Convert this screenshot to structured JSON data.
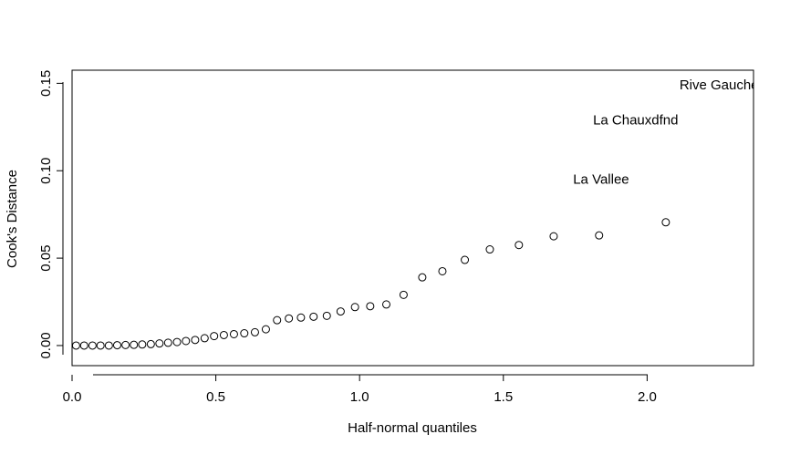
{
  "chart_data": {
    "type": "scatter",
    "title": "",
    "xlabel": "Half-normal quantiles",
    "ylabel": "Cook's Distance",
    "xlim": [
      0.0,
      2.37
    ],
    "ylim": [
      -0.0115,
      0.1575
    ],
    "x_ticks": [
      0.0,
      0.5,
      1.0,
      1.5,
      2.0
    ],
    "x_tick_labels": [
      "0.0",
      "0.5",
      "1.0",
      "1.5",
      "2.0"
    ],
    "y_ticks": [
      0.0,
      0.05,
      0.1,
      0.15
    ],
    "y_tick_labels": [
      "0.00",
      "0.05",
      "0.10",
      "0.15"
    ],
    "grid": false,
    "points": [
      {
        "x": 0.014,
        "y": 0.0
      },
      {
        "x": 0.042,
        "y": 0.0
      },
      {
        "x": 0.071,
        "y": 0.0
      },
      {
        "x": 0.099,
        "y": 0.0
      },
      {
        "x": 0.128,
        "y": 0.0
      },
      {
        "x": 0.157,
        "y": 0.0002
      },
      {
        "x": 0.186,
        "y": 0.0003
      },
      {
        "x": 0.215,
        "y": 0.0004
      },
      {
        "x": 0.244,
        "y": 0.0006
      },
      {
        "x": 0.274,
        "y": 0.0008
      },
      {
        "x": 0.304,
        "y": 0.0012
      },
      {
        "x": 0.334,
        "y": 0.0016
      },
      {
        "x": 0.365,
        "y": 0.002
      },
      {
        "x": 0.396,
        "y": 0.0026
      },
      {
        "x": 0.428,
        "y": 0.0032
      },
      {
        "x": 0.461,
        "y": 0.0042
      },
      {
        "x": 0.494,
        "y": 0.0054
      },
      {
        "x": 0.528,
        "y": 0.006
      },
      {
        "x": 0.563,
        "y": 0.0065
      },
      {
        "x": 0.599,
        "y": 0.007
      },
      {
        "x": 0.636,
        "y": 0.0076
      },
      {
        "x": 0.674,
        "y": 0.0093
      },
      {
        "x": 0.713,
        "y": 0.0145
      },
      {
        "x": 0.754,
        "y": 0.0155
      },
      {
        "x": 0.796,
        "y": 0.016
      },
      {
        "x": 0.84,
        "y": 0.0165
      },
      {
        "x": 0.886,
        "y": 0.017
      },
      {
        "x": 0.934,
        "y": 0.0195
      },
      {
        "x": 0.984,
        "y": 0.022
      },
      {
        "x": 1.037,
        "y": 0.0225
      },
      {
        "x": 1.093,
        "y": 0.0235
      },
      {
        "x": 1.153,
        "y": 0.029
      },
      {
        "x": 1.218,
        "y": 0.039
      },
      {
        "x": 1.288,
        "y": 0.0425
      },
      {
        "x": 1.366,
        "y": 0.049
      },
      {
        "x": 1.453,
        "y": 0.055
      },
      {
        "x": 1.554,
        "y": 0.0575
      },
      {
        "x": 1.675,
        "y": 0.0625
      },
      {
        "x": 1.833,
        "y": 0.063
      },
      {
        "x": 2.065,
        "y": 0.0705
      }
    ],
    "labels": [
      {
        "text": "La Vallee",
        "x": 1.84,
        "y": 0.0945
      },
      {
        "text": "La Chauxdfnd",
        "x": 1.96,
        "y": 0.1285
      },
      {
        "text": "Rive Gauche",
        "x": 2.25,
        "y": 0.1485
      }
    ]
  }
}
